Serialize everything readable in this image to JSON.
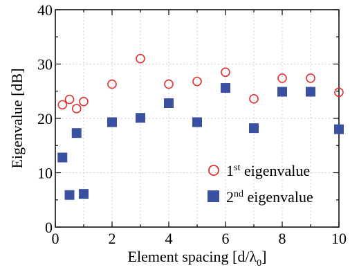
{
  "chart_data": {
    "type": "scatter",
    "xlabel": "Element spacing [d/λ",
    "xlabel_sub": "0",
    "xlabel_close": "]",
    "ylabel": "Eigenvalue [dB]",
    "xlim": [
      0,
      10
    ],
    "ylim": [
      0,
      40
    ],
    "xticks": [
      0,
      2,
      4,
      6,
      8,
      10
    ],
    "yticks": [
      0,
      10,
      20,
      30,
      40
    ],
    "grid": true,
    "legend_position": "bottom-right",
    "series": [
      {
        "name_base": "1",
        "name_sup": "st",
        "name_rest": " eigenvalue",
        "marker": "open-circle",
        "color": "#e03030",
        "x": [
          0.25,
          0.5,
          0.75,
          1,
          2,
          3,
          4,
          5,
          6,
          7,
          8,
          9,
          10
        ],
        "y": [
          22.5,
          23.5,
          21.8,
          23.1,
          26.3,
          31.0,
          26.3,
          26.8,
          28.5,
          23.6,
          27.4,
          27.4,
          24.8
        ]
      },
      {
        "name_base": "2",
        "name_sup": "nd",
        "name_rest": " eigenvalue",
        "marker": "filled-square",
        "color": "#3a50a0",
        "x": [
          0.25,
          0.5,
          0.75,
          1,
          2,
          3,
          4,
          5,
          6,
          7,
          8,
          9,
          10
        ],
        "y": [
          12.8,
          5.9,
          17.3,
          6.1,
          19.3,
          20.1,
          22.8,
          19.3,
          25.6,
          18.2,
          24.9,
          24.9,
          18.0
        ]
      }
    ]
  }
}
